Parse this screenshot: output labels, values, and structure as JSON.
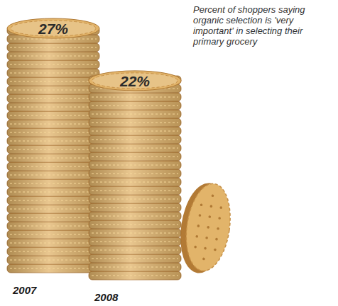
{
  "chart_data": {
    "type": "bar",
    "title": "Percent of shoppers saying organic selection is 'very important' in selecting their primary grocery",
    "categories": [
      "2007",
      "2008"
    ],
    "values": [
      27,
      22
    ],
    "value_labels": [
      "27%",
      "22%"
    ],
    "color": "#e2b46a",
    "data_labels": true,
    "tick_labels": "x"
  }
}
